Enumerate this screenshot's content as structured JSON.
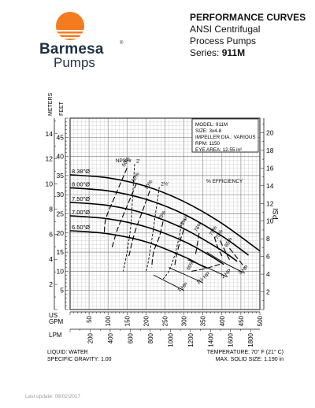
{
  "brand": {
    "name": "Barmesa",
    "sub": "Pumps",
    "reg": "®",
    "sun_color": "#f47b20",
    "text_color": "#1f2f44"
  },
  "header": {
    "title": "PERFORMANCE CURVES",
    "line1": "ANSI Centrifugal",
    "line2": "Process Pumps",
    "series_label": "Series:",
    "series_model": "911M"
  },
  "info_box": [
    "MODEL: 911M",
    "SIZE: 3x4-8",
    "IMPELLER DIA.: VARIOUS",
    "RPM: 1150",
    "EYE AREA: 12.55 in²"
  ],
  "footer": {
    "liquid": "LIQUID: WATER",
    "gravity": "SPECIFIC GRAVITY: 1.00",
    "temperature": "TEMPERATURE: 70° F (21° C)",
    "solid_size": "MAX. SOLID SIZE: 1.190 in",
    "last_update": "Last update: 06/02/2017"
  },
  "chart_data": {
    "type": "line",
    "axes": {
      "meters_label": "METERS",
      "feet_label": "FEET",
      "psi_label": "PSI",
      "usgpm_label": "US GPM",
      "lpm_label": "LPM",
      "feet_ticks": [
        5,
        10,
        15,
        20,
        25,
        30,
        35,
        40,
        45
      ],
      "meters_ticks": [
        2,
        4,
        6,
        8,
        10,
        12,
        14
      ],
      "psi_ticks": [
        2,
        4,
        6,
        8,
        10,
        12,
        14,
        16,
        18,
        20
      ],
      "gpm_ticks": [
        50,
        100,
        150,
        200,
        250,
        300,
        350,
        400,
        450,
        500
      ],
      "lpm_ticks": [
        200,
        400,
        600,
        800,
        1000,
        1200,
        1400,
        1600,
        1800
      ],
      "xlim_gpm": [
        0,
        500
      ],
      "ylim_ft": [
        0,
        50
      ],
      "grid": true
    },
    "head_curves": [
      {
        "label": "8.38\"Ø",
        "gpm": [
          0,
          100,
          200,
          300,
          400,
          500
        ],
        "ft": [
          35.2,
          34.4,
          32.2,
          28.2,
          22.5,
          15.3
        ]
      },
      {
        "label": "8.00\"Ø",
        "gpm": [
          0,
          100,
          200,
          300,
          400,
          470
        ],
        "ft": [
          31.8,
          31.0,
          28.8,
          24.9,
          19.2,
          14.2
        ]
      },
      {
        "label": "7.50\"Ø",
        "gpm": [
          0,
          100,
          200,
          300,
          400,
          440
        ],
        "ft": [
          28.0,
          27.2,
          25.0,
          21.1,
          15.4,
          12.6
        ]
      },
      {
        "label": "7.00\"Ø",
        "gpm": [
          0,
          100,
          200,
          300,
          370,
          405
        ],
        "ft": [
          24.5,
          23.7,
          21.6,
          17.8,
          14.0,
          11.8
        ]
      },
      {
        "label": "6.50\"Ø",
        "gpm": [
          0,
          100,
          200,
          300,
          330,
          360
        ],
        "ft": [
          20.6,
          19.8,
          17.7,
          13.8,
          12.3,
          10.8
        ]
      }
    ],
    "efficiency_label": "% EFFICIENCY",
    "efficiency_contours": [
      {
        "label": "50%",
        "gpm": [
          150,
          120,
          95,
          90
        ],
        "ft": [
          37,
          30,
          24,
          20
        ]
      },
      {
        "label": "60%",
        "gpm": [
          175,
          150,
          125,
          110
        ],
        "ft": [
          33,
          27,
          21,
          16
        ]
      },
      {
        "label": "70%",
        "gpm": [
          210,
          190,
          170,
          155
        ],
        "ft": [
          31,
          25.5,
          20,
          14
        ]
      },
      {
        "label": "75%",
        "gpm": [
          245,
          235,
          220,
          215
        ],
        "ft": [
          23,
          19,
          15,
          11
        ]
      },
      {
        "label": "76%",
        "gpm": [
          300,
          290,
          280,
          275
        ],
        "ft": [
          21,
          18,
          14,
          11
        ]
      },
      {
        "label": "76%",
        "gpm": [
          340,
          335,
          330
        ],
        "ft": [
          20,
          17,
          14
        ]
      },
      {
        "label": "75%",
        "gpm": [
          380,
          390,
          400
        ],
        "ft": [
          19,
          16,
          14
        ]
      },
      {
        "label": "70%",
        "gpm": [
          395,
          410,
          420
        ],
        "ft": [
          18,
          15,
          13
        ]
      },
      {
        "label": "65%",
        "gpm": [
          420,
          440,
          460
        ],
        "ft": [
          16,
          13.5,
          11
        ]
      },
      {
        "label": "60%",
        "gpm": [
          320,
          360,
          400
        ],
        "ft": [
          10,
          10.8,
          12
        ]
      }
    ],
    "npshr_label": "NPSHr",
    "npshr_curves": [
      {
        "label": "2'",
        "gpm": [
          170,
          165,
          160,
          150,
          140
        ],
        "ft": [
          38,
          30,
          22,
          15,
          10
        ]
      },
      {
        "label": "2½'",
        "gpm": [
          235,
          225,
          215,
          205,
          200
        ],
        "ft": [
          32,
          25,
          18,
          12,
          10
        ]
      },
      {
        "label": "3'",
        "gpm": [
          295,
          285,
          275,
          260,
          245
        ],
        "ft": [
          23,
          18,
          14,
          10,
          8
        ]
      }
    ],
    "hp_curves": [
      {
        "label": "1 HP",
        "gpm": [
          220,
          260,
          300
        ],
        "ft": [
          9,
          7,
          5
        ]
      },
      {
        "label": "1½ HP",
        "gpm": [
          260,
          305,
          350
        ],
        "ft": [
          11,
          9,
          7
        ]
      },
      {
        "label": "2 HP",
        "gpm": [
          310,
          360,
          415
        ],
        "ft": [
          13,
          11,
          8.5
        ]
      },
      {
        "label": "3 HP",
        "gpm": [
          360,
          410,
          460
        ],
        "ft": [
          15,
          12,
          9.5
        ]
      }
    ]
  }
}
